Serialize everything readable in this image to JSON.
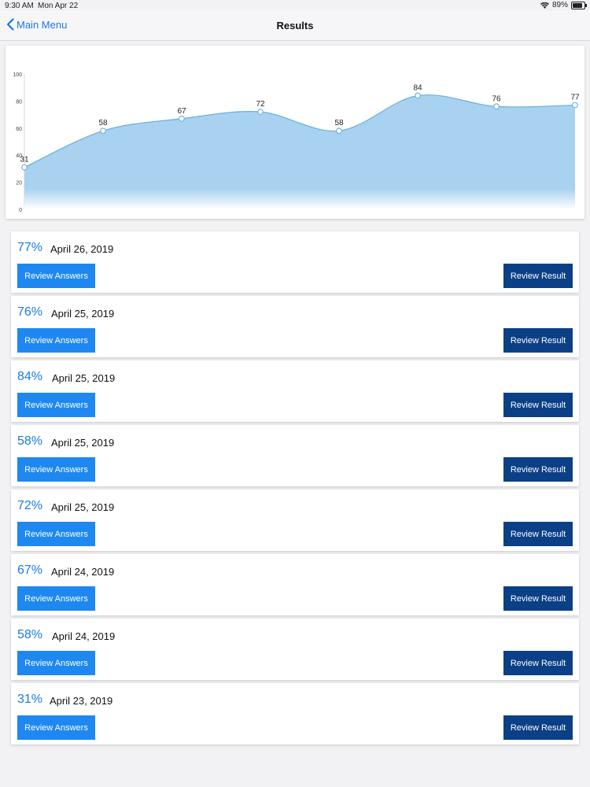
{
  "status_bar": {
    "time": "9:30 AM",
    "date": "Mon Apr 22",
    "battery": "89%",
    "battery_level": 0.89
  },
  "nav": {
    "back_label": "Main Menu",
    "title": "Results"
  },
  "colors": {
    "accent": "#1a7ae6",
    "review_answers_bg": "#1e88f0",
    "review_result_bg": "#0b3f86",
    "area_fill": "#a9d2f0",
    "line": "#6aaee0"
  },
  "chart_data": {
    "type": "area",
    "y_ticks": [
      0,
      20,
      40,
      60,
      80,
      100
    ],
    "ylim": [
      0,
      100
    ],
    "values": [
      31,
      58,
      67,
      72,
      58,
      84,
      76,
      77
    ],
    "data_labels": [
      "31",
      "58",
      "67",
      "72",
      "58",
      "84",
      "76",
      "77"
    ],
    "grid": false,
    "smooth": true
  },
  "results": [
    {
      "score": "77%",
      "date": "April 26, 2019",
      "review_answers": "Review Answers",
      "review_result": "Review Result"
    },
    {
      "score": "76%",
      "date": "April 25, 2019",
      "review_answers": "Review Answers",
      "review_result": "Review Result"
    },
    {
      "score": "84%",
      "date": "April 25, 2019",
      "review_answers": "Review Answers",
      "review_result": "Review Result"
    },
    {
      "score": "58%",
      "date": "April 25, 2019",
      "review_answers": "Review Answers",
      "review_result": "Review Result"
    },
    {
      "score": "72%",
      "date": "April 25, 2019",
      "review_answers": "Review Answers",
      "review_result": "Review Result"
    },
    {
      "score": "67%",
      "date": "April 24, 2019",
      "review_answers": "Review Answers",
      "review_result": "Review Result"
    },
    {
      "score": "58%",
      "date": "April 24, 2019",
      "review_answers": "Review Answers",
      "review_result": "Review Result"
    },
    {
      "score": "31%",
      "date": "April 23, 2019",
      "review_answers": "Review Answers",
      "review_result": "Review Result"
    }
  ]
}
